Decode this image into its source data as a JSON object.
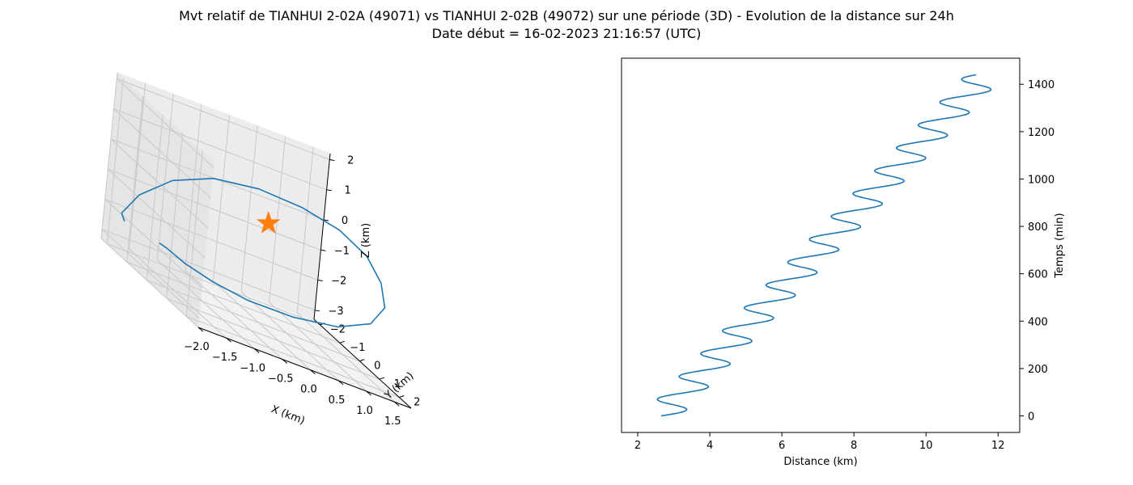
{
  "figure": {
    "title_line1": "Mvt relatif de TIANHUI 2-02A (49071) vs TIANHUI 2-02B (49072) sur une période (3D) - Evolution de la distance sur 24h",
    "title_line2": "Date début = 16-02-2023 21:16:57 (UTC)"
  },
  "chart_data": [
    {
      "type": "line3d",
      "xlabel": "X (km)",
      "ylabel": "Y (km)",
      "zlabel": "Z (km)",
      "xlim": [
        -2.0,
        1.8
      ],
      "ylim": [
        -2.3,
        2.6
      ],
      "zlim": [
        -3.3,
        2.2
      ],
      "x_ticks": [
        "−2.0",
        "−1.5",
        "−1.0",
        "−0.5",
        "0.0",
        "0.5",
        "1.0",
        "1.5"
      ],
      "y_ticks": [
        "−2",
        "−1",
        "0",
        "1",
        "2"
      ],
      "z_ticks": [
        "2",
        "1",
        "0",
        "−1",
        "−2",
        "−3"
      ],
      "grid": true,
      "series": [
        {
          "color": "#1f77b4",
          "points": [
            [
              -1.7,
              -2.1,
              -2.4
            ],
            [
              -1.95,
              -1.6,
              -2.0
            ],
            [
              -1.9,
              -1.0,
              -1.0
            ],
            [
              -1.5,
              -0.6,
              0.0
            ],
            [
              -0.95,
              -0.2,
              0.7
            ],
            [
              -0.3,
              0.2,
              1.05
            ],
            [
              0.35,
              0.55,
              1.1
            ],
            [
              0.9,
              0.9,
              0.95
            ],
            [
              1.3,
              1.2,
              0.55
            ],
            [
              1.5,
              1.45,
              -0.05
            ],
            [
              1.55,
              1.6,
              -0.75
            ],
            [
              1.35,
              1.55,
              -1.45
            ],
            [
              0.9,
              1.25,
              -2.05
            ],
            [
              0.3,
              0.75,
              -2.45
            ],
            [
              -0.3,
              0.2,
              -2.65
            ],
            [
              -0.75,
              -0.3,
              -2.65
            ],
            [
              -1.1,
              -0.75,
              -2.55
            ],
            [
              -1.25,
              -1.2,
              -2.45
            ],
            [
              -1.25,
              -1.6,
              -2.5
            ]
          ]
        }
      ],
      "marker": {
        "shape": "star",
        "color": "#ff7f0e",
        "x": 0.0,
        "y": 0.0,
        "z": 0.0
      }
    },
    {
      "type": "line",
      "xlabel": "Distance (km)",
      "ylabel": "Temps (min)",
      "xlim": [
        1.55,
        12.6
      ],
      "ylim": [
        -70,
        1510
      ],
      "x_ticks": [
        2,
        4,
        6,
        8,
        10,
        12
      ],
      "y_ticks": [
        0,
        200,
        400,
        600,
        800,
        1000,
        1200,
        1400
      ],
      "grid": false,
      "series": [
        {
          "color": "#1f77b4",
          "distance_trend": {
            "start": 2.65,
            "end": 11.65
          },
          "oscillation_amplitude_km": 0.55,
          "oscillation_period_min": 96.5,
          "time_range_min": [
            0,
            1440
          ]
        }
      ]
    }
  ]
}
